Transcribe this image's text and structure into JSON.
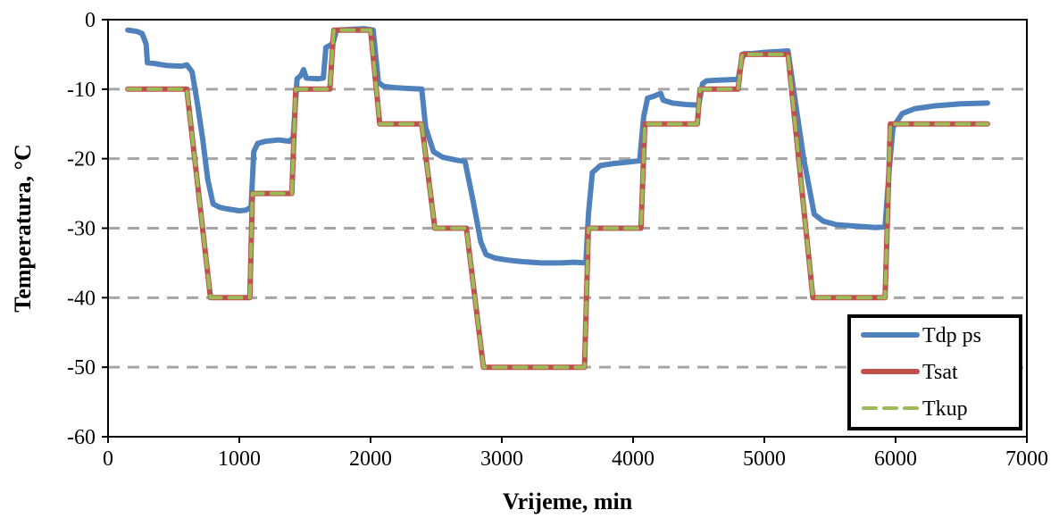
{
  "chart_data": {
    "type": "line",
    "xlabel": "Vrijeme, min",
    "ylabel": "Temperatura, °C",
    "xlim": [
      0,
      7000
    ],
    "ylim": [
      -60,
      0
    ],
    "xticks": [
      0,
      1000,
      2000,
      3000,
      4000,
      5000,
      6000,
      7000
    ],
    "yticks": [
      0,
      -10,
      -20,
      -30,
      -40,
      -50,
      -60
    ],
    "grid": "horizontal-dashed",
    "legend_position": "bottom-right",
    "series": [
      {
        "name": "Tdp ps",
        "color": "#4F81BD",
        "style": "solid",
        "points": [
          [
            150,
            -1.5
          ],
          [
            220,
            -1.7
          ],
          [
            260,
            -2.0
          ],
          [
            290,
            -3.5
          ],
          [
            300,
            -6.2
          ],
          [
            350,
            -6.3
          ],
          [
            450,
            -6.6
          ],
          [
            560,
            -6.7
          ],
          [
            600,
            -6.5
          ],
          [
            640,
            -7.5
          ],
          [
            680,
            -12
          ],
          [
            720,
            -17
          ],
          [
            760,
            -23
          ],
          [
            800,
            -26.5
          ],
          [
            850,
            -27.0
          ],
          [
            900,
            -27.2
          ],
          [
            1000,
            -27.5
          ],
          [
            1050,
            -27.4
          ],
          [
            1090,
            -27.0
          ],
          [
            1110,
            -19
          ],
          [
            1140,
            -17.8
          ],
          [
            1200,
            -17.5
          ],
          [
            1300,
            -17.3
          ],
          [
            1380,
            -17.5
          ],
          [
            1410,
            -17.0
          ],
          [
            1440,
            -8.5
          ],
          [
            1470,
            -8.0
          ],
          [
            1490,
            -7.2
          ],
          [
            1510,
            -8.4
          ],
          [
            1600,
            -8.5
          ],
          [
            1640,
            -8.4
          ],
          [
            1660,
            -4.0
          ],
          [
            1700,
            -3.6
          ],
          [
            1720,
            -3.0
          ],
          [
            1740,
            -1.5
          ],
          [
            1850,
            -1.4
          ],
          [
            1950,
            -1.3
          ],
          [
            2020,
            -1.5
          ],
          [
            2060,
            -9.0
          ],
          [
            2100,
            -9.6
          ],
          [
            2200,
            -9.8
          ],
          [
            2300,
            -9.9
          ],
          [
            2390,
            -10.0
          ],
          [
            2420,
            -15.5
          ],
          [
            2480,
            -19.0
          ],
          [
            2550,
            -19.8
          ],
          [
            2650,
            -20.2
          ],
          [
            2720,
            -20.4
          ],
          [
            2780,
            -26
          ],
          [
            2840,
            -32
          ],
          [
            2880,
            -33.8
          ],
          [
            2950,
            -34.3
          ],
          [
            3050,
            -34.6
          ],
          [
            3150,
            -34.8
          ],
          [
            3300,
            -35.0
          ],
          [
            3450,
            -35.0
          ],
          [
            3550,
            -34.9
          ],
          [
            3640,
            -35.0
          ],
          [
            3660,
            -28
          ],
          [
            3690,
            -22.0
          ],
          [
            3750,
            -21.0
          ],
          [
            3850,
            -20.7
          ],
          [
            3950,
            -20.5
          ],
          [
            4050,
            -20.3
          ],
          [
            4080,
            -14
          ],
          [
            4110,
            -11.3
          ],
          [
            4160,
            -11.0
          ],
          [
            4210,
            -10.6
          ],
          [
            4230,
            -11.6
          ],
          [
            4300,
            -12.0
          ],
          [
            4400,
            -12.2
          ],
          [
            4500,
            -12.3
          ],
          [
            4530,
            -9.2
          ],
          [
            4560,
            -8.8
          ],
          [
            4650,
            -8.7
          ],
          [
            4800,
            -8.6
          ],
          [
            4830,
            -5.6
          ],
          [
            4850,
            -4.9
          ],
          [
            4900,
            -4.9
          ],
          [
            5000,
            -4.7
          ],
          [
            5100,
            -4.6
          ],
          [
            5180,
            -4.5
          ],
          [
            5230,
            -11
          ],
          [
            5300,
            -20
          ],
          [
            5380,
            -28
          ],
          [
            5450,
            -29.0
          ],
          [
            5550,
            -29.5
          ],
          [
            5700,
            -29.7
          ],
          [
            5850,
            -29.9
          ],
          [
            5920,
            -29.8
          ],
          [
            5950,
            -22
          ],
          [
            5980,
            -15.5
          ],
          [
            6050,
            -13.5
          ],
          [
            6150,
            -12.8
          ],
          [
            6300,
            -12.4
          ],
          [
            6500,
            -12.1
          ],
          [
            6700,
            -12.0
          ]
        ]
      },
      {
        "name": "Tsat",
        "color": "#C0504D",
        "style": "solid",
        "points": [
          [
            150,
            -10
          ],
          [
            600,
            -10
          ],
          [
            780,
            -40
          ],
          [
            1080,
            -40
          ],
          [
            1100,
            -25
          ],
          [
            1400,
            -25
          ],
          [
            1430,
            -10
          ],
          [
            1690,
            -10
          ],
          [
            1720,
            -1.5
          ],
          [
            2000,
            -1.5
          ],
          [
            2070,
            -15
          ],
          [
            2390,
            -15
          ],
          [
            2490,
            -30
          ],
          [
            2730,
            -30
          ],
          [
            2860,
            -50
          ],
          [
            3630,
            -50
          ],
          [
            3660,
            -30
          ],
          [
            4060,
            -30
          ],
          [
            4090,
            -15
          ],
          [
            4490,
            -15
          ],
          [
            4510,
            -10
          ],
          [
            4800,
            -10
          ],
          [
            4830,
            -5
          ],
          [
            5180,
            -5
          ],
          [
            5370,
            -40
          ],
          [
            5920,
            -40
          ],
          [
            5960,
            -15
          ],
          [
            6700,
            -15
          ]
        ]
      },
      {
        "name": "Tkup",
        "color": "#9BBB59",
        "style": "dashed",
        "points": [
          [
            150,
            -10
          ],
          [
            600,
            -10
          ],
          [
            780,
            -40
          ],
          [
            1080,
            -40
          ],
          [
            1100,
            -25
          ],
          [
            1400,
            -25
          ],
          [
            1430,
            -10
          ],
          [
            1690,
            -10
          ],
          [
            1720,
            -1.5
          ],
          [
            2000,
            -1.5
          ],
          [
            2070,
            -15
          ],
          [
            2390,
            -15
          ],
          [
            2490,
            -30
          ],
          [
            2730,
            -30
          ],
          [
            2860,
            -50
          ],
          [
            3630,
            -50
          ],
          [
            3660,
            -30
          ],
          [
            4060,
            -30
          ],
          [
            4090,
            -15
          ],
          [
            4490,
            -15
          ],
          [
            4510,
            -10
          ],
          [
            4800,
            -10
          ],
          [
            4830,
            -5
          ],
          [
            5180,
            -5
          ],
          [
            5370,
            -40
          ],
          [
            5920,
            -40
          ],
          [
            5960,
            -15
          ],
          [
            6700,
            -15
          ]
        ]
      }
    ]
  }
}
